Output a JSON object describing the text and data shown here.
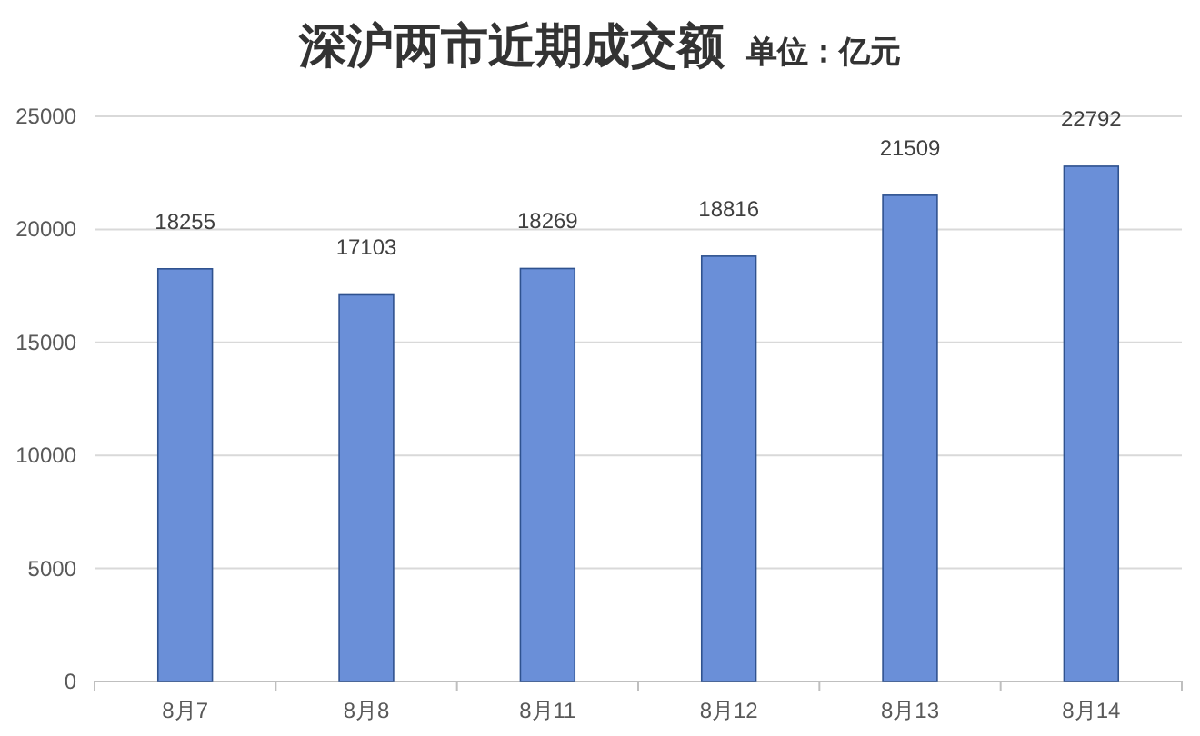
{
  "chart_data": {
    "type": "bar",
    "title": "深沪两市近期成交额",
    "subtitle": "单位：亿元",
    "categories": [
      "8月7",
      "8月8",
      "8月11",
      "8月12",
      "8月13",
      "8月14"
    ],
    "values": [
      18255,
      17103,
      18269,
      18816,
      21509,
      22792
    ],
    "color": "#6a8fd8",
    "ylim": [
      0,
      25000
    ],
    "yticks": [
      0,
      5000,
      10000,
      15000,
      20000,
      25000
    ],
    "grid": "y",
    "data_labels": true
  }
}
